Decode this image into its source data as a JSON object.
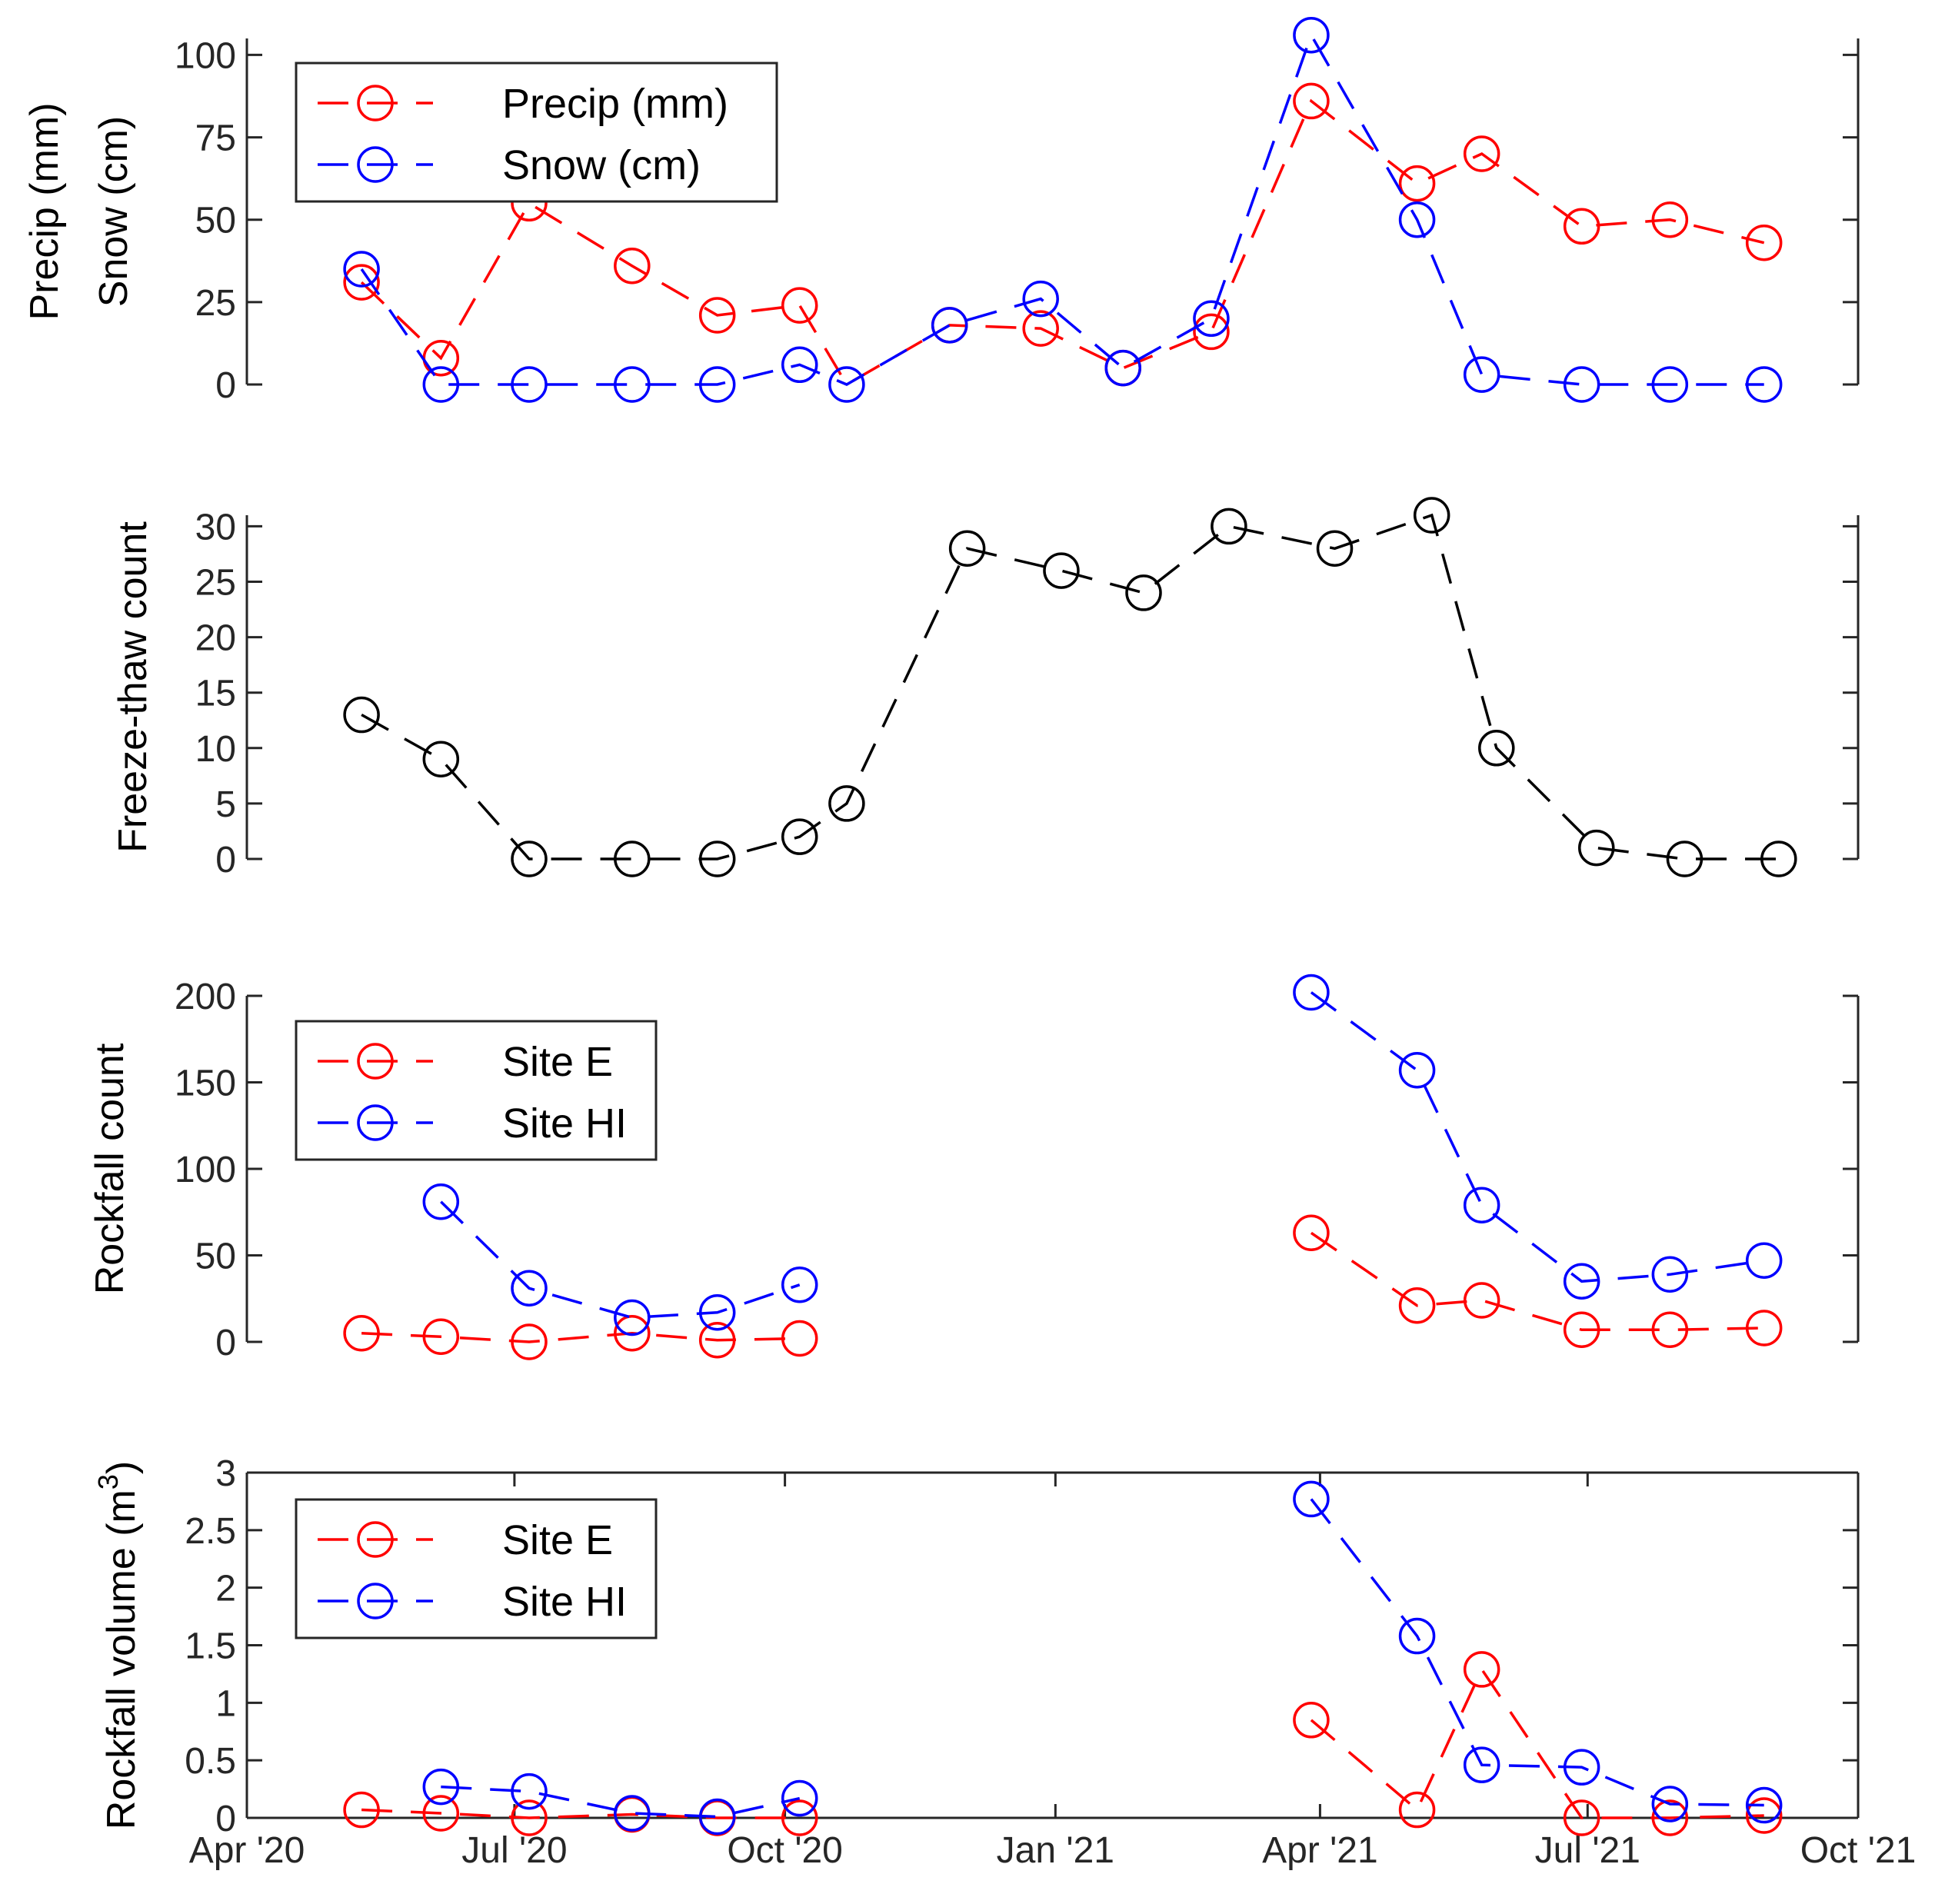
{
  "colors": {
    "red": "#ff0000",
    "blue": "#0000ff",
    "black": "#000000",
    "axis": "#262626"
  },
  "x_axis": {
    "range": [
      "2020-04-01",
      "2021-10-01"
    ],
    "ticks": [
      {
        "date": "2020-04-01",
        "label": "Apr '20"
      },
      {
        "date": "2020-07-01",
        "label": "Jul '20"
      },
      {
        "date": "2020-10-01",
        "label": "Oct '20"
      },
      {
        "date": "2021-01-01",
        "label": "Jan '21"
      },
      {
        "date": "2021-04-01",
        "label": "Apr '21"
      },
      {
        "date": "2021-07-01",
        "label": "Jul '21"
      },
      {
        "date": "2021-10-01",
        "label": "Oct '21"
      }
    ]
  },
  "chart_data": [
    {
      "type": "line",
      "ylabel": [
        "Precip (mm)",
        "Snow (cm)"
      ],
      "ylim": [
        0,
        105
      ],
      "yticks": [
        0,
        25,
        50,
        75,
        100
      ],
      "ytick_labels": [
        "0",
        "25",
        "50",
        "75",
        "100"
      ],
      "legend": "top-left",
      "series": [
        {
          "name": "Precip (mm)",
          "color": "red",
          "marker": "circle",
          "points": [
            {
              "x": "2020-05-10",
              "y": 31
            },
            {
              "x": "2020-06-06",
              "y": 8
            },
            {
              "x": "2020-07-06",
              "y": 55
            },
            {
              "x": "2020-08-10",
              "y": 36
            },
            {
              "x": "2020-09-08",
              "y": 21
            },
            {
              "x": "2020-10-06",
              "y": 24
            },
            {
              "x": "2020-10-22",
              "y": 0,
              "marker": false
            },
            {
              "x": "2020-11-26",
              "y": 18
            },
            {
              "x": "2020-12-27",
              "y": 17
            },
            {
              "x": "2021-01-24",
              "y": 5
            },
            {
              "x": "2021-02-23",
              "y": 16
            },
            {
              "x": "2021-03-29",
              "y": 86
            },
            {
              "x": "2021-05-04",
              "y": 61
            },
            {
              "x": "2021-05-26",
              "y": 70
            },
            {
              "x": "2021-06-29",
              "y": 48
            },
            {
              "x": "2021-07-29",
              "y": 50
            },
            {
              "x": "2021-08-30",
              "y": 43
            }
          ]
        },
        {
          "name": "Snow (cm)",
          "color": "blue",
          "marker": "circle",
          "points": [
            {
              "x": "2020-05-10",
              "y": 35
            },
            {
              "x": "2020-06-06",
              "y": 0
            },
            {
              "x": "2020-07-06",
              "y": 0
            },
            {
              "x": "2020-08-10",
              "y": 0
            },
            {
              "x": "2020-09-08",
              "y": 0
            },
            {
              "x": "2020-10-06",
              "y": 6
            },
            {
              "x": "2020-10-22",
              "y": 0
            },
            {
              "x": "2020-11-26",
              "y": 18
            },
            {
              "x": "2020-12-27",
              "y": 26
            },
            {
              "x": "2021-01-24",
              "y": 5
            },
            {
              "x": "2021-02-23",
              "y": 20
            },
            {
              "x": "2021-03-29",
              "y": 106
            },
            {
              "x": "2021-05-04",
              "y": 50
            },
            {
              "x": "2021-05-26",
              "y": 3
            },
            {
              "x": "2021-06-29",
              "y": 0
            },
            {
              "x": "2021-07-29",
              "y": 0
            },
            {
              "x": "2021-08-30",
              "y": 0
            }
          ]
        }
      ]
    },
    {
      "type": "line",
      "ylabel": [
        "Freeze-thaw count"
      ],
      "ylim": [
        0,
        31
      ],
      "yticks": [
        0,
        5,
        10,
        15,
        20,
        25,
        30
      ],
      "ytick_labels": [
        "0",
        "5",
        "10",
        "15",
        "20",
        "25",
        "30"
      ],
      "series": [
        {
          "name": "Freeze-thaw count",
          "color": "black",
          "marker": "circle",
          "points": [
            {
              "x": "2020-05-10",
              "y": 13
            },
            {
              "x": "2020-06-06",
              "y": 9
            },
            {
              "x": "2020-07-06",
              "y": 0
            },
            {
              "x": "2020-08-10",
              "y": 0
            },
            {
              "x": "2020-09-08",
              "y": 0
            },
            {
              "x": "2020-10-06",
              "y": 2
            },
            {
              "x": "2020-10-22",
              "y": 5
            },
            {
              "x": "2020-12-02",
              "y": 28
            },
            {
              "x": "2021-01-03",
              "y": 26
            },
            {
              "x": "2021-01-31",
              "y": 24
            },
            {
              "x": "2021-03-01",
              "y": 30
            },
            {
              "x": "2021-04-06",
              "y": 28
            },
            {
              "x": "2021-05-09",
              "y": 31
            },
            {
              "x": "2021-05-31",
              "y": 10
            },
            {
              "x": "2021-07-04",
              "y": 1
            },
            {
              "x": "2021-08-03",
              "y": 0
            },
            {
              "x": "2021-09-04",
              "y": 0
            }
          ]
        }
      ]
    },
    {
      "type": "line",
      "ylabel": [
        "Rockfall count"
      ],
      "ylim": [
        0,
        200
      ],
      "yticks": [
        0,
        50,
        100,
        150,
        200
      ],
      "ytick_labels": [
        "0",
        "50",
        "100",
        "150",
        "200"
      ],
      "legend": "top-left",
      "series": [
        {
          "name": "Site E",
          "color": "red",
          "marker": "circle",
          "points": [
            {
              "x": "2020-05-10",
              "y": 5
            },
            {
              "x": "2020-06-06",
              "y": 3
            },
            {
              "x": "2020-07-06",
              "y": 0
            },
            {
              "x": "2020-08-10",
              "y": 5
            },
            {
              "x": "2020-09-08",
              "y": 1
            },
            {
              "x": "2020-10-06",
              "y": 2
            },
            null,
            {
              "x": "2021-03-29",
              "y": 63
            },
            {
              "x": "2021-05-04",
              "y": 21
            },
            {
              "x": "2021-05-26",
              "y": 24
            },
            {
              "x": "2021-06-29",
              "y": 7
            },
            {
              "x": "2021-07-29",
              "y": 7
            },
            {
              "x": "2021-08-30",
              "y": 8
            }
          ]
        },
        {
          "name": "Site HI",
          "color": "blue",
          "marker": "circle",
          "points": [
            {
              "x": "2020-06-06",
              "y": 81
            },
            {
              "x": "2020-07-06",
              "y": 31
            },
            {
              "x": "2020-08-10",
              "y": 14
            },
            {
              "x": "2020-09-08",
              "y": 17
            },
            {
              "x": "2020-10-06",
              "y": 33
            },
            null,
            {
              "x": "2021-03-29",
              "y": 202
            },
            {
              "x": "2021-05-04",
              "y": 157
            },
            {
              "x": "2021-05-26",
              "y": 79
            },
            {
              "x": "2021-06-29",
              "y": 35
            },
            {
              "x": "2021-07-29",
              "y": 39
            },
            {
              "x": "2021-08-30",
              "y": 47
            }
          ]
        }
      ]
    },
    {
      "type": "line",
      "ylabel": [
        "Rockfall volume (m",
        "3",
        ")"
      ],
      "ylim": [
        0,
        3
      ],
      "yticks": [
        0,
        0.5,
        1,
        1.5,
        2,
        2.5,
        3
      ],
      "ytick_labels": [
        "0",
        "0.5",
        "1",
        "1.5",
        "2",
        "2.5",
        "3"
      ],
      "legend": "top-left",
      "series": [
        {
          "name": "Site E",
          "color": "red",
          "marker": "circle",
          "points": [
            {
              "x": "2020-05-10",
              "y": 0.07
            },
            {
              "x": "2020-06-06",
              "y": 0.04
            },
            {
              "x": "2020-07-06",
              "y": 0
            },
            {
              "x": "2020-08-10",
              "y": 0.03
            },
            {
              "x": "2020-09-08",
              "y": 0
            },
            {
              "x": "2020-10-06",
              "y": 0
            },
            null,
            {
              "x": "2021-03-29",
              "y": 0.85
            },
            {
              "x": "2021-05-04",
              "y": 0.07
            },
            {
              "x": "2021-05-26",
              "y": 1.29
            },
            {
              "x": "2021-06-29",
              "y": 0
            },
            {
              "x": "2021-07-29",
              "y": 0
            },
            {
              "x": "2021-08-30",
              "y": 0.02
            }
          ]
        },
        {
          "name": "Site HI",
          "color": "blue",
          "marker": "circle",
          "points": [
            {
              "x": "2020-06-06",
              "y": 0.27
            },
            {
              "x": "2020-07-06",
              "y": 0.23
            },
            {
              "x": "2020-08-10",
              "y": 0.04
            },
            {
              "x": "2020-09-08",
              "y": 0.01
            },
            {
              "x": "2020-10-06",
              "y": 0.17
            },
            null,
            {
              "x": "2021-03-29",
              "y": 2.77
            },
            {
              "x": "2021-05-04",
              "y": 1.58
            },
            {
              "x": "2021-05-26",
              "y": 0.46
            },
            {
              "x": "2021-06-29",
              "y": 0.44
            },
            {
              "x": "2021-07-29",
              "y": 0.12
            },
            {
              "x": "2021-08-30",
              "y": 0.11
            }
          ]
        }
      ]
    }
  ]
}
